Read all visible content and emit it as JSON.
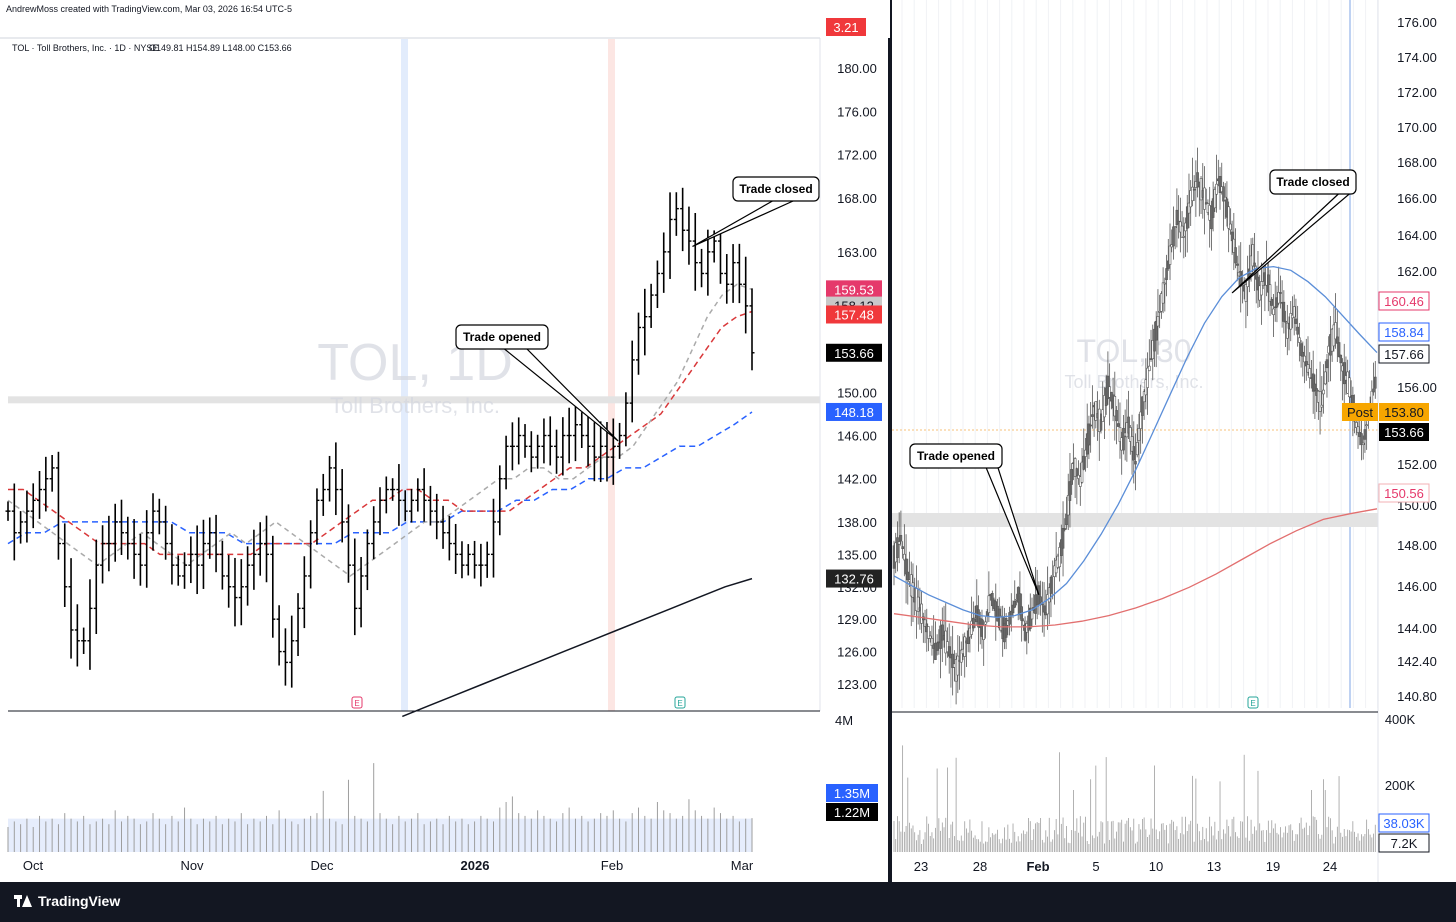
{
  "header": {
    "credit": "AndrewMoss created with TradingView.com, Mar 03, 2026 16:54 UTC-5",
    "top_tag": "3.21"
  },
  "footer": {
    "brand": "TradingView"
  },
  "chart_data": [
    {
      "type": "bar",
      "title": "TOL · Toll Brothers, Inc. · 1D · NYSE",
      "ohlc_text": "O149.81 H154.89 L148.00 C153.66",
      "watermark": {
        "symbol": "TOL, 1D",
        "name": "Toll Brothers, Inc."
      },
      "ylim": [
        120.5,
        184
      ],
      "y_ticks": [
        "180.00",
        "176.00",
        "172.00",
        "168.00",
        "163.00",
        "150.00",
        "146.00",
        "142.00",
        "138.00",
        "135.00",
        "132.00",
        "129.00",
        "126.00",
        "123.00"
      ],
      "x_ticks": [
        {
          "label": "Oct",
          "pos": 0.0
        },
        {
          "label": "Nov",
          "pos": 0.22
        },
        {
          "label": "Dec",
          "pos": 0.42
        },
        {
          "label": "2026",
          "pos": 0.62,
          "bold": true
        },
        {
          "label": "Feb",
          "pos": 0.82
        },
        {
          "label": "Mar",
          "pos": 1.0
        }
      ],
      "closes": [
        139,
        137,
        138,
        139,
        140,
        141,
        142,
        143,
        136,
        132,
        128,
        127,
        127,
        130,
        134,
        136,
        136,
        138,
        137,
        136,
        135,
        134,
        137,
        139,
        138,
        136,
        134,
        133,
        134,
        135,
        134,
        136,
        137,
        135,
        133,
        132,
        131,
        132,
        134,
        135,
        136,
        135,
        129,
        126,
        125,
        127,
        130,
        133,
        137,
        140,
        141,
        143,
        141,
        138,
        134,
        130,
        133,
        136,
        138,
        140,
        141,
        141,
        140,
        139,
        140,
        141,
        140,
        139,
        138,
        137,
        136,
        135,
        134,
        135,
        134,
        134,
        135,
        138,
        142,
        145,
        145,
        146,
        145,
        144,
        145,
        146,
        145,
        144,
        146,
        146,
        147,
        146,
        145,
        144,
        145,
        144,
        145,
        146,
        149,
        153,
        156,
        157,
        159,
        161,
        163,
        166,
        167,
        165,
        164,
        162,
        161,
        163,
        164,
        161,
        160,
        162,
        160,
        158,
        153.66
      ],
      "ma_fast": {
        "name": "",
        "color": "#aaaaaa",
        "values": [
          140,
          139,
          138,
          137,
          136,
          135,
          134,
          135,
          136,
          137,
          136,
          135,
          134,
          135,
          136,
          137,
          136,
          137,
          138,
          137,
          136,
          135,
          134,
          133,
          134,
          135,
          136,
          137,
          138,
          138,
          139,
          140,
          141,
          142,
          142,
          143,
          143,
          142,
          142,
          143,
          144,
          144,
          145,
          147,
          149,
          151,
          154,
          157,
          159,
          160,
          159.53
        ]
      },
      "ma_mid": {
        "name": "",
        "color": "#d9383a",
        "values": [
          141,
          141,
          140,
          139,
          138,
          137,
          136,
          136,
          136,
          136,
          135,
          135,
          135,
          135,
          135,
          135,
          135,
          136,
          136,
          136,
          136,
          137,
          138,
          139,
          140,
          140,
          141,
          141,
          140,
          140,
          139,
          139,
          139,
          139,
          140,
          141,
          142,
          143,
          143,
          144,
          145,
          146,
          147,
          148,
          150,
          152,
          154,
          156,
          157,
          157.48
        ]
      },
      "ma_slow": {
        "name": "",
        "color": "#2962ff",
        "values": [
          136,
          137,
          137,
          138,
          138,
          138,
          138,
          138,
          138,
          138,
          137,
          137,
          137,
          136,
          136,
          136,
          136,
          136,
          136,
          137,
          137,
          137,
          138,
          138,
          138,
          139,
          139,
          139,
          140,
          140,
          141,
          141,
          142,
          142,
          143,
          143,
          144,
          145,
          145,
          146,
          147,
          148.18
        ]
      },
      "ma_long": {
        "name": "",
        "color": "#131722",
        "values": [
          120,
          121,
          122,
          123,
          124,
          125,
          126,
          127,
          128,
          129,
          130,
          131,
          132,
          132.76
        ]
      },
      "price_tags": [
        {
          "value": 159.53,
          "label": "159.53",
          "bg": "#e5396b",
          "fg": "#ffffff"
        },
        {
          "value": 158.12,
          "label": "158.12",
          "bg": "#c9c9c9",
          "fg": "#131722"
        },
        {
          "value": 157.48,
          "label": "157.48",
          "bg": "#f0383b",
          "fg": "#ffffff"
        },
        {
          "value": 153.66,
          "label": "153.66",
          "bg": "#000000",
          "fg": "#ffffff"
        },
        {
          "value": 148.18,
          "label": "148.18",
          "bg": "#2962ff",
          "fg": "#ffffff"
        },
        {
          "value": 132.76,
          "label": "132.76",
          "bg": "#222222",
          "fg": "#ffffff"
        }
      ],
      "annotations": [
        {
          "text": "Trade opened",
          "anchor_price": 145.5,
          "anchor_pos": 0.82
        },
        {
          "text": "Trade closed",
          "anchor_price": 163.5,
          "anchor_pos": 0.92
        }
      ],
      "volume": {
        "axis_label": "4M",
        "tags": [
          {
            "label": "1.35M",
            "bg": "#2962ff"
          },
          {
            "label": "1.22M",
            "bg": "#000000"
          }
        ],
        "values": [
          0.9,
          1.1,
          1.0,
          1.2,
          0.9,
          1.3,
          1.1,
          1.2,
          1.0,
          1.4,
          1.2,
          1.1,
          1.3,
          1.0,
          1.1,
          1.2,
          1.0,
          1.5,
          1.1,
          1.3,
          1.2,
          1.0,
          1.1,
          1.4,
          1.2,
          1.0,
          1.3,
          1.1,
          1.6,
          1.2,
          1.0,
          1.2,
          1.1,
          1.3,
          1.0,
          1.2,
          1.1,
          1.4,
          1.0,
          1.2,
          1.1,
          1.3,
          1.0,
          1.5,
          1.2,
          1.1,
          1.0,
          1.2,
          1.3,
          1.4,
          2.2,
          1.2,
          1.1,
          1.0,
          2.6,
          1.3,
          1.2,
          1.1,
          3.2,
          1.4,
          1.2,
          1.0,
          1.3,
          1.1,
          1.2,
          1.4,
          1.0,
          1.1,
          1.2,
          1.0,
          1.3,
          1.1,
          1.2,
          1.0,
          1.1,
          1.3,
          1.2,
          1.1,
          1.6,
          1.8,
          2.0,
          1.4,
          1.3,
          1.2,
          1.5,
          1.3,
          1.2,
          1.1,
          1.4,
          1.6,
          1.2,
          1.3,
          1.1,
          1.2,
          1.4,
          1.3,
          1.5,
          1.2,
          1.1,
          1.4,
          1.6,
          1.3,
          1.2,
          1.8,
          1.5,
          1.4,
          1.2,
          1.3,
          1.9,
          1.5,
          1.3,
          1.2,
          1.6,
          1.4,
          1.2,
          1.3,
          1.1,
          1.2,
          1.22
        ]
      }
    },
    {
      "type": "line",
      "title": "TOL, 30",
      "watermark": {
        "symbol": "TOL, 30",
        "name": "Toll Brothers, Inc."
      },
      "ylim": [
        140,
        177
      ],
      "y_ticks": [
        "176.00",
        "174.00",
        "172.00",
        "170.00",
        "168.00",
        "166.00",
        "164.00",
        "162.00",
        "156.00",
        "152.00",
        "150.00",
        "148.00",
        "146.00",
        "144.00",
        "142.40",
        "140.80"
      ],
      "x_ticks": [
        {
          "label": "23",
          "pos": 0.06
        },
        {
          "label": "28",
          "pos": 0.18
        },
        {
          "label": "Feb",
          "pos": 0.3,
          "bold": true
        },
        {
          "label": "5",
          "pos": 0.42
        },
        {
          "label": "10",
          "pos": 0.54
        },
        {
          "label": "13",
          "pos": 0.66
        },
        {
          "label": "19",
          "pos": 0.78
        },
        {
          "label": "24",
          "pos": 0.9
        }
      ],
      "price": [
        148,
        149,
        147,
        146,
        145,
        144,
        143,
        144,
        143,
        142,
        143,
        144,
        145,
        144,
        146,
        145,
        144,
        145,
        146,
        144,
        145,
        146,
        145,
        147,
        148,
        150,
        153,
        152,
        154,
        156,
        155,
        157,
        156,
        154,
        155,
        153,
        156,
        158,
        160,
        162,
        164,
        166,
        165,
        167,
        168,
        167,
        166,
        168,
        167,
        165,
        163,
        162,
        164,
        162,
        163,
        161,
        162,
        160,
        161,
        159,
        158,
        157,
        156,
        159,
        160,
        158,
        157,
        155,
        154,
        156,
        157.66
      ],
      "ema": {
        "name": "",
        "color": "#5b8ed8",
        "values": [
          147,
          146.5,
          146,
          145.6,
          145.2,
          144.9,
          144.8,
          144.9,
          145.2,
          145.8,
          146.6,
          147.8,
          149.2,
          150.8,
          152.6,
          154.6,
          156.6,
          158.6,
          160.4,
          161.8,
          162.8,
          163.3,
          163.4,
          163.2,
          162.6,
          161.8,
          160.8,
          159.8,
          158.84
        ]
      },
      "ma": {
        "name": "",
        "color": "#e26f6f",
        "values": [
          145,
          144.8,
          144.6,
          144.4,
          144.3,
          144.3,
          144.4,
          144.6,
          144.9,
          145.3,
          145.8,
          146.4,
          147.1,
          147.9,
          148.7,
          149.4,
          150.0,
          150.3,
          150.56
        ]
      },
      "price_tags": [
        {
          "value": 160.46,
          "label": "160.46",
          "bg": "#ffffff",
          "fg": "#e5396b",
          "border": "#e5396b"
        },
        {
          "value": 158.84,
          "label": "158.84",
          "bg": "#ffffff",
          "fg": "#2962ff",
          "border": "#2962ff"
        },
        {
          "value": 157.66,
          "label": "157.66",
          "bg": "#ffffff",
          "fg": "#131722",
          "border": "#131722"
        },
        {
          "value": 153.8,
          "label": "153.80",
          "bg": "#f7a600",
          "fg": "#131722",
          "prefix": "Post"
        },
        {
          "value": 153.66,
          "label": "153.66",
          "bg": "#000000",
          "fg": "#ffffff"
        },
        {
          "value": 150.56,
          "label": "150.56",
          "bg": "#ffffff",
          "fg": "#e5396b",
          "border": "#f3b0b5"
        }
      ],
      "annotations": [
        {
          "text": "Trade opened",
          "anchor_price": 146,
          "anchor_pos": 0.3
        },
        {
          "text": "Trade closed",
          "anchor_price": 162,
          "anchor_pos": 0.7
        }
      ],
      "volume": {
        "y_ticks": [
          "400K",
          "200K"
        ],
        "tags": [
          {
            "label": "38.03K",
            "bg": "#ffffff",
            "fg": "#2962ff",
            "border": "#2962ff"
          },
          {
            "label": "7.2K",
            "bg": "#ffffff",
            "fg": "#131722",
            "border": "#131722"
          }
        ]
      }
    }
  ]
}
